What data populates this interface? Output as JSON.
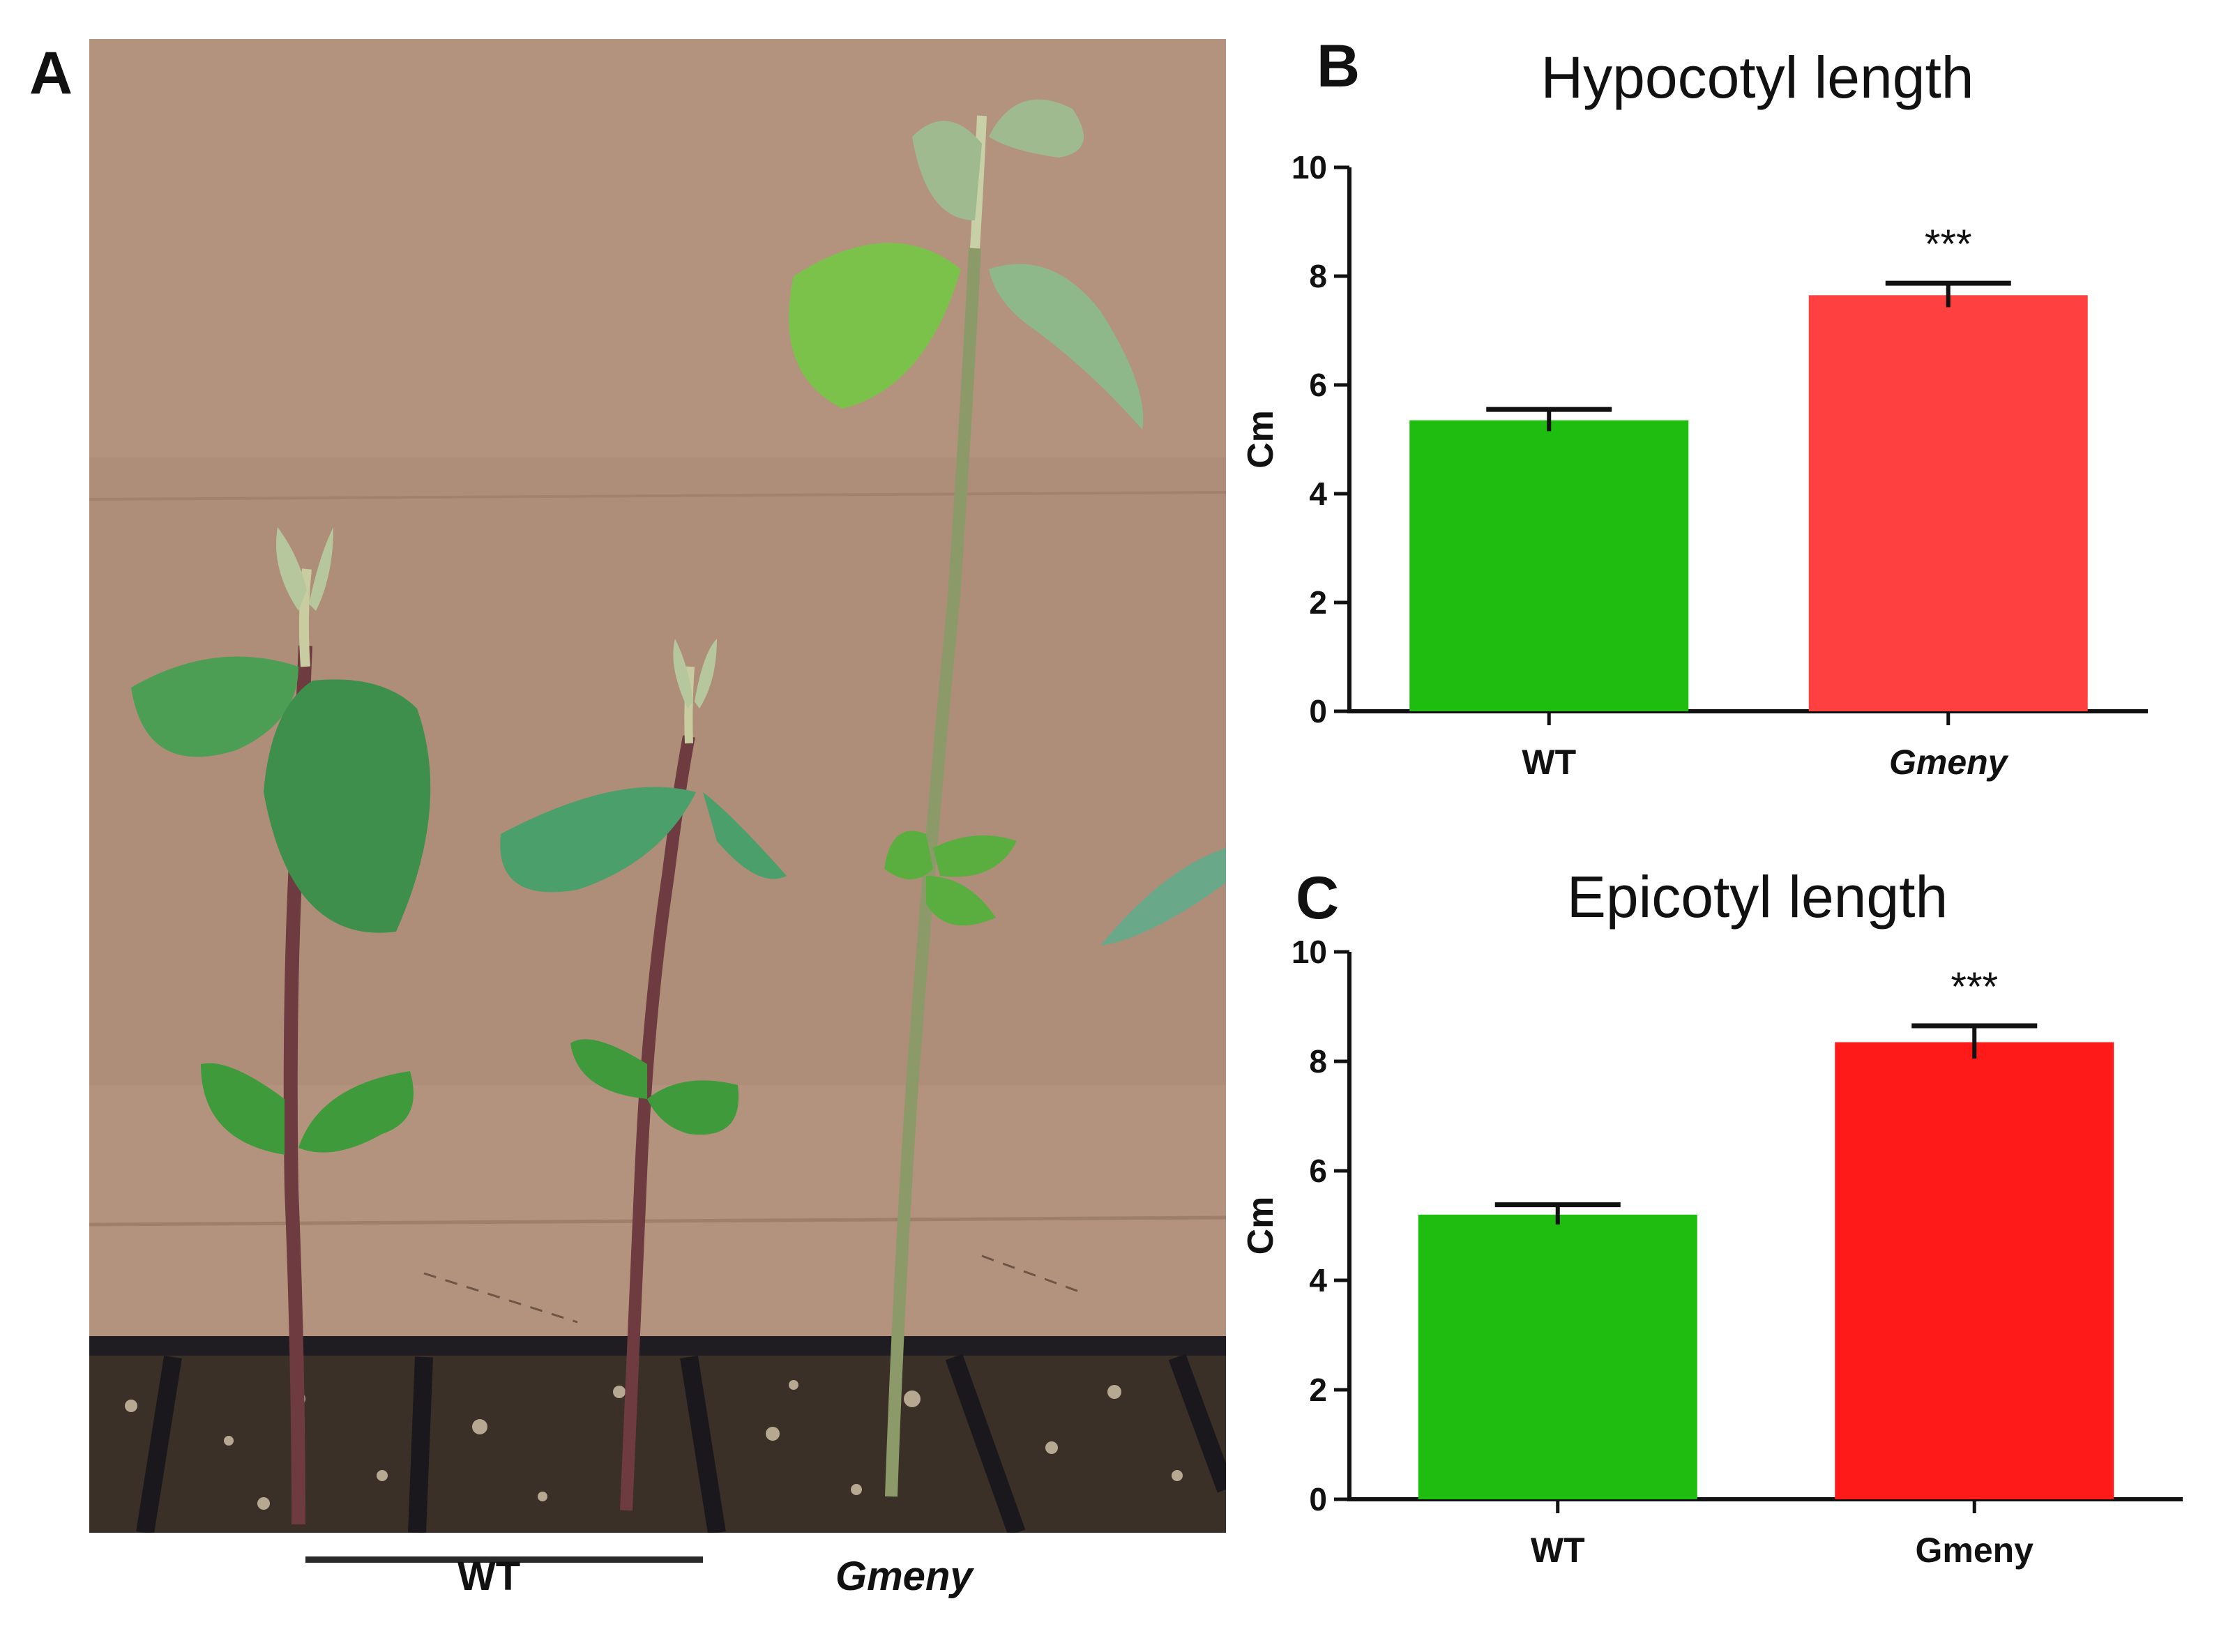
{
  "panels": {
    "a": {
      "letter": "A",
      "labels": [
        "WT",
        "Gmeny"
      ],
      "colors": {
        "cardboard": "#b0907a",
        "soil": "#3c3128",
        "leaf": "#4fa35a",
        "stem": "#6b3a3e"
      }
    },
    "b": {
      "letter": "B"
    },
    "c": {
      "letter": "C"
    }
  },
  "chart_data": [
    {
      "type": "bar",
      "title": "Hypocotyl length",
      "ylabel": "Cm",
      "xlabel": "",
      "categories": [
        "WT",
        "Gmeny"
      ],
      "category_italic": [
        false,
        true
      ],
      "values": [
        5.35,
        7.65
      ],
      "errors": [
        0.2,
        0.22
      ],
      "colors": [
        "#1fbd10",
        "#ff4040"
      ],
      "significance": [
        "",
        "***"
      ],
      "ylim": [
        0,
        10
      ],
      "yticks": [
        0,
        2,
        4,
        6,
        8,
        10
      ],
      "grid": false
    },
    {
      "type": "bar",
      "title": "Epicotyl length",
      "ylabel": "Cm",
      "xlabel": "",
      "categories": [
        "WT",
        "Gmeny"
      ],
      "category_italic": [
        false,
        false
      ],
      "values": [
        5.2,
        8.35
      ],
      "errors": [
        0.18,
        0.3
      ],
      "colors": [
        "#1fbd10",
        "#ff1a1a"
      ],
      "significance": [
        "",
        "***"
      ],
      "ylim": [
        0,
        10
      ],
      "yticks": [
        0,
        2,
        4,
        6,
        8,
        10
      ],
      "grid": false
    }
  ]
}
